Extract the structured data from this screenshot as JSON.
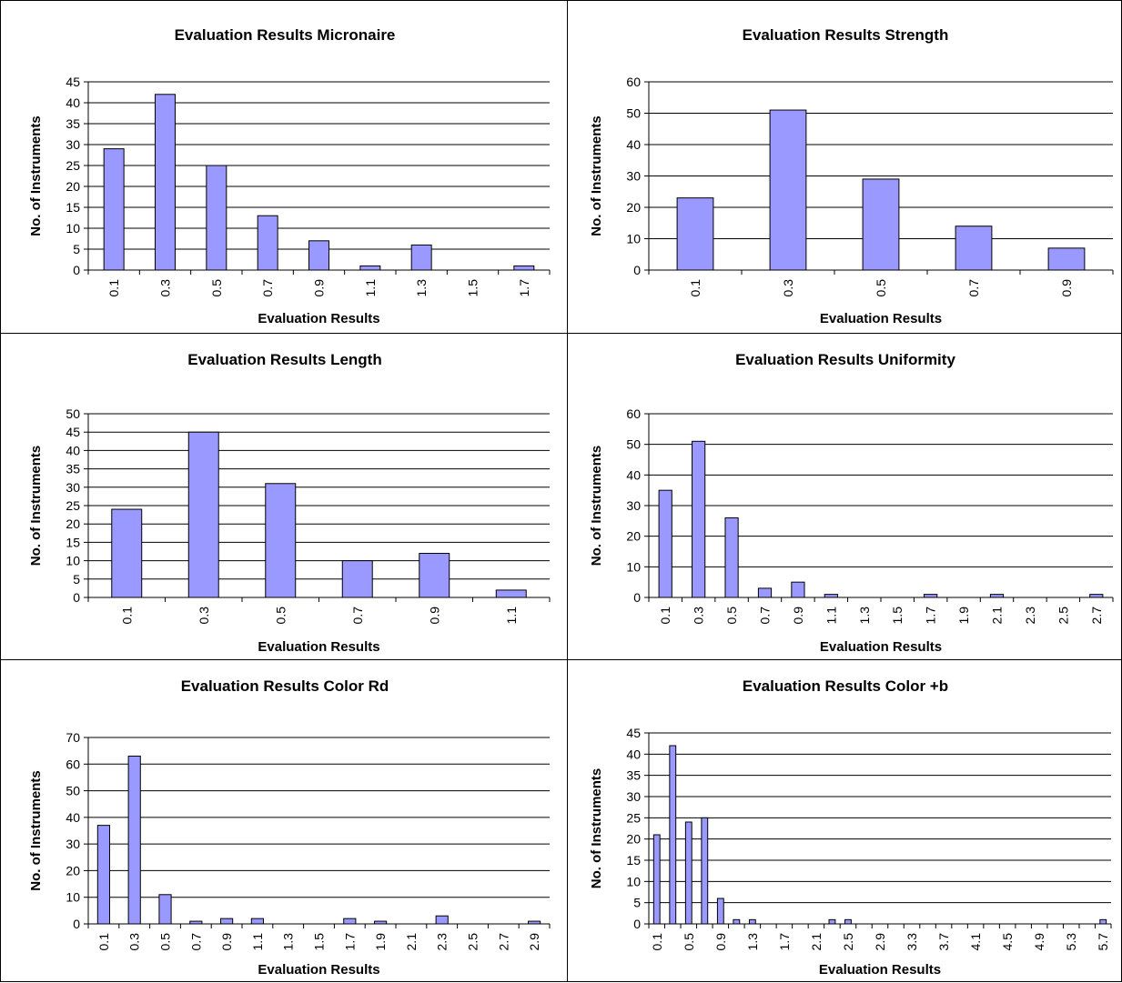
{
  "chart_data": [
    {
      "type": "bar",
      "title": "Evaluation Results Micronaire",
      "xlabel": "Evaluation Results",
      "ylabel": "No. of Instruments",
      "categories": [
        "0.1",
        "0.3",
        "0.5",
        "0.7",
        "0.9",
        "1.1",
        "1.3",
        "1.5",
        "1.7"
      ],
      "values": [
        29,
        42,
        25,
        13,
        7,
        1,
        6,
        0,
        1
      ],
      "ylim": [
        0,
        45
      ],
      "ystep": 5,
      "grid": true,
      "color": "#9999ff"
    },
    {
      "type": "bar",
      "title": "Evaluation Results Strength",
      "xlabel": "Evaluation Results",
      "ylabel": "No. of Instruments",
      "categories": [
        "0.1",
        "0.3",
        "0.5",
        "0.7",
        "0.9"
      ],
      "values": [
        23,
        51,
        29,
        14,
        7
      ],
      "ylim": [
        0,
        60
      ],
      "ystep": 10,
      "grid": true,
      "color": "#9999ff"
    },
    {
      "type": "bar",
      "title": "Evaluation Results Length",
      "xlabel": "Evaluation Results",
      "ylabel": "No. of Instruments",
      "categories": [
        "0.1",
        "0.3",
        "0.5",
        "0.7",
        "0.9",
        "1.1"
      ],
      "values": [
        24,
        45,
        31,
        10,
        12,
        2
      ],
      "ylim": [
        0,
        50
      ],
      "ystep": 5,
      "grid": true,
      "color": "#9999ff"
    },
    {
      "type": "bar",
      "title": "Evaluation Results Uniformity",
      "xlabel": "Evaluation Results",
      "ylabel": "No. of Instruments",
      "categories": [
        "0.1",
        "0.3",
        "0.5",
        "0.7",
        "0.9",
        "1.1",
        "1.3",
        "1.5",
        "1.7",
        "1.9",
        "2.1",
        "2.3",
        "2.5",
        "2.7"
      ],
      "values": [
        35,
        51,
        26,
        3,
        5,
        1,
        0,
        0,
        1,
        0,
        1,
        0,
        0,
        1
      ],
      "ylim": [
        0,
        60
      ],
      "ystep": 10,
      "grid": true,
      "color": "#9999ff"
    },
    {
      "type": "bar",
      "title": "Evaluation Results Color Rd",
      "xlabel": "Evaluation Results",
      "ylabel": "No. of Instruments",
      "categories": [
        "0.1",
        "0.3",
        "0.5",
        "0.7",
        "0.9",
        "1.1",
        "1.3",
        "1.5",
        "1.7",
        "1.9",
        "2.1",
        "2.3",
        "2.5",
        "2.7",
        "2.9"
      ],
      "values": [
        37,
        63,
        11,
        1,
        2,
        2,
        0,
        0,
        2,
        1,
        0,
        3,
        0,
        0,
        1
      ],
      "ylim": [
        0,
        70
      ],
      "ystep": 10,
      "grid": true,
      "color": "#9999ff"
    },
    {
      "type": "bar",
      "title": "Evaluation Results Color +b",
      "xlabel": "Evaluation Results",
      "ylabel": "No. of Instruments",
      "categories": [
        "0.1",
        "0.3",
        "0.5",
        "0.7",
        "0.9",
        "1.1",
        "1.3",
        "1.5",
        "1.7",
        "1.9",
        "2.1",
        "2.3",
        "2.5",
        "2.7",
        "2.9",
        "3.1",
        "3.3",
        "3.5",
        "3.7",
        "3.9",
        "4.1",
        "4.3",
        "4.5",
        "4.7",
        "4.9",
        "5.1",
        "5.3",
        "5.5",
        "5.7"
      ],
      "tick_labels_shown": [
        "0.1",
        "0.5",
        "0.9",
        "1.3",
        "1.7",
        "2.1",
        "2.5",
        "2.9",
        "3.3",
        "3.7",
        "4.1",
        "4.5",
        "4.9",
        "5.3",
        "5.7"
      ],
      "values": [
        21,
        42,
        24,
        25,
        6,
        1,
        1,
        0,
        0,
        0,
        0,
        1,
        1,
        0,
        0,
        0,
        0,
        0,
        0,
        0,
        0,
        0,
        0,
        0,
        0,
        0,
        0,
        0,
        1
      ],
      "ylim": [
        0,
        45
      ],
      "ystep": 5,
      "grid": true,
      "color": "#9999ff"
    }
  ]
}
